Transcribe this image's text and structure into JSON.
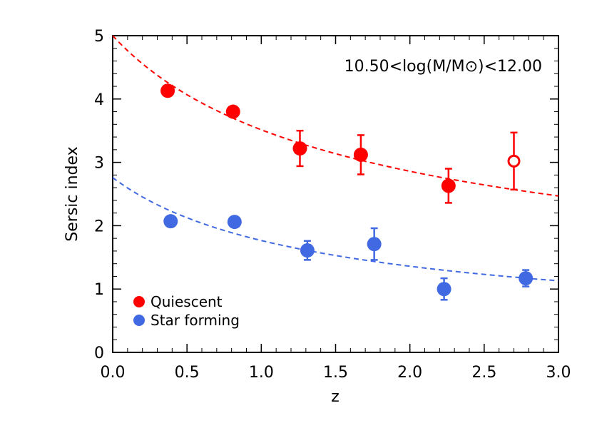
{
  "chart_data": {
    "type": "scatter",
    "title": "",
    "annotation": "10.50<log(M/M⊙)<12.00",
    "xlabel": "z",
    "ylabel": "Sersic index",
    "xlim": [
      0.0,
      3.0
    ],
    "ylim": [
      0,
      5
    ],
    "x_ticks": [
      "0.0",
      "0.5",
      "1.0",
      "1.5",
      "2.0",
      "2.5",
      "3.0"
    ],
    "y_ticks": [
      "0",
      "1",
      "2",
      "3",
      "4",
      "5"
    ],
    "grid": false,
    "legend_position": "bottom-left",
    "series": [
      {
        "name": "Quiescent",
        "color": "#ff0000",
        "points": [
          {
            "x": 0.37,
            "y": 4.13,
            "yerr": 0,
            "open": false
          },
          {
            "x": 0.81,
            "y": 3.8,
            "yerr": 0,
            "open": false
          },
          {
            "x": 1.26,
            "y": 3.22,
            "yerr": 0.28,
            "open": false
          },
          {
            "x": 1.67,
            "y": 3.12,
            "yerr": 0.31,
            "open": false
          },
          {
            "x": 2.26,
            "y": 2.63,
            "yerr": 0.27,
            "open": false
          },
          {
            "x": 2.7,
            "y": 3.02,
            "yerr": 0.45,
            "open": true
          }
        ],
        "fit": {
          "y0": 5.0,
          "y_end": 2.47
        }
      },
      {
        "name": "Star forming",
        "color": "#4169e1",
        "points": [
          {
            "x": 0.39,
            "y": 2.07,
            "yerr": 0,
            "open": false
          },
          {
            "x": 0.82,
            "y": 2.06,
            "yerr": 0,
            "open": false
          },
          {
            "x": 1.31,
            "y": 1.61,
            "yerr": 0.15,
            "open": false
          },
          {
            "x": 1.76,
            "y": 1.71,
            "yerr": 0.25,
            "open": false
          },
          {
            "x": 2.23,
            "y": 1.0,
            "yerr": 0.17,
            "open": false
          },
          {
            "x": 2.78,
            "y": 1.17,
            "yerr": 0.13,
            "open": false
          }
        ],
        "fit": {
          "y0": 2.76,
          "y_end": 1.13
        }
      }
    ]
  }
}
